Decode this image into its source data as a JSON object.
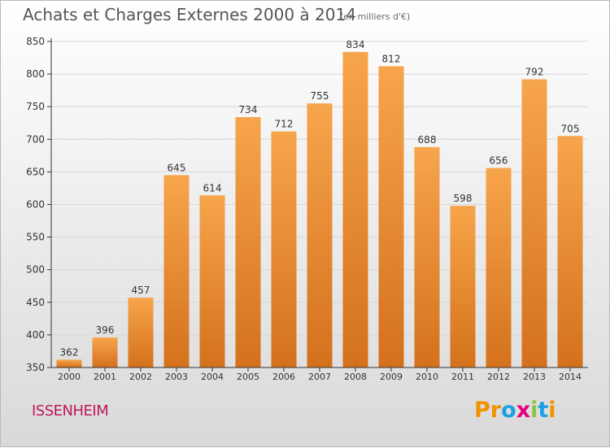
{
  "header": {
    "title": "Achats et Charges Externes 2000 à 2014",
    "unit_note": "(en milliers d'€)"
  },
  "footer": {
    "place": "ISSENHEIM",
    "brand": "Proxiti",
    "brand_letters": [
      {
        "ch": "P",
        "color": "#f39200"
      },
      {
        "ch": "r",
        "color": "#f39200"
      },
      {
        "ch": "o",
        "color": "#1ba1e2"
      },
      {
        "ch": "x",
        "color": "#e6007e"
      },
      {
        "ch": "i",
        "color": "#8cc63f"
      },
      {
        "ch": "t",
        "color": "#1ba1e2"
      },
      {
        "ch": "i",
        "color": "#f39200"
      }
    ]
  },
  "chart_data": {
    "type": "bar",
    "title": "Achats et Charges Externes 2000 à 2014",
    "subtitle": "(en milliers d'€)",
    "categories": [
      "2000",
      "2001",
      "2002",
      "2003",
      "2004",
      "2005",
      "2006",
      "2007",
      "2008",
      "2009",
      "2010",
      "2011",
      "2012",
      "2013",
      "2014"
    ],
    "values": [
      362,
      396,
      457,
      645,
      614,
      734,
      712,
      755,
      834,
      812,
      688,
      598,
      656,
      792,
      705
    ],
    "ylim": [
      350,
      850
    ],
    "yticks": [
      350,
      400,
      450,
      500,
      550,
      600,
      650,
      700,
      750,
      800,
      850
    ],
    "xlabel": "",
    "ylabel": "",
    "grid": true,
    "colors": {
      "bar_top": "#f7a54c",
      "bar_bottom": "#d4711c",
      "grid": "#d6d6d6",
      "axis": "#333333"
    }
  }
}
